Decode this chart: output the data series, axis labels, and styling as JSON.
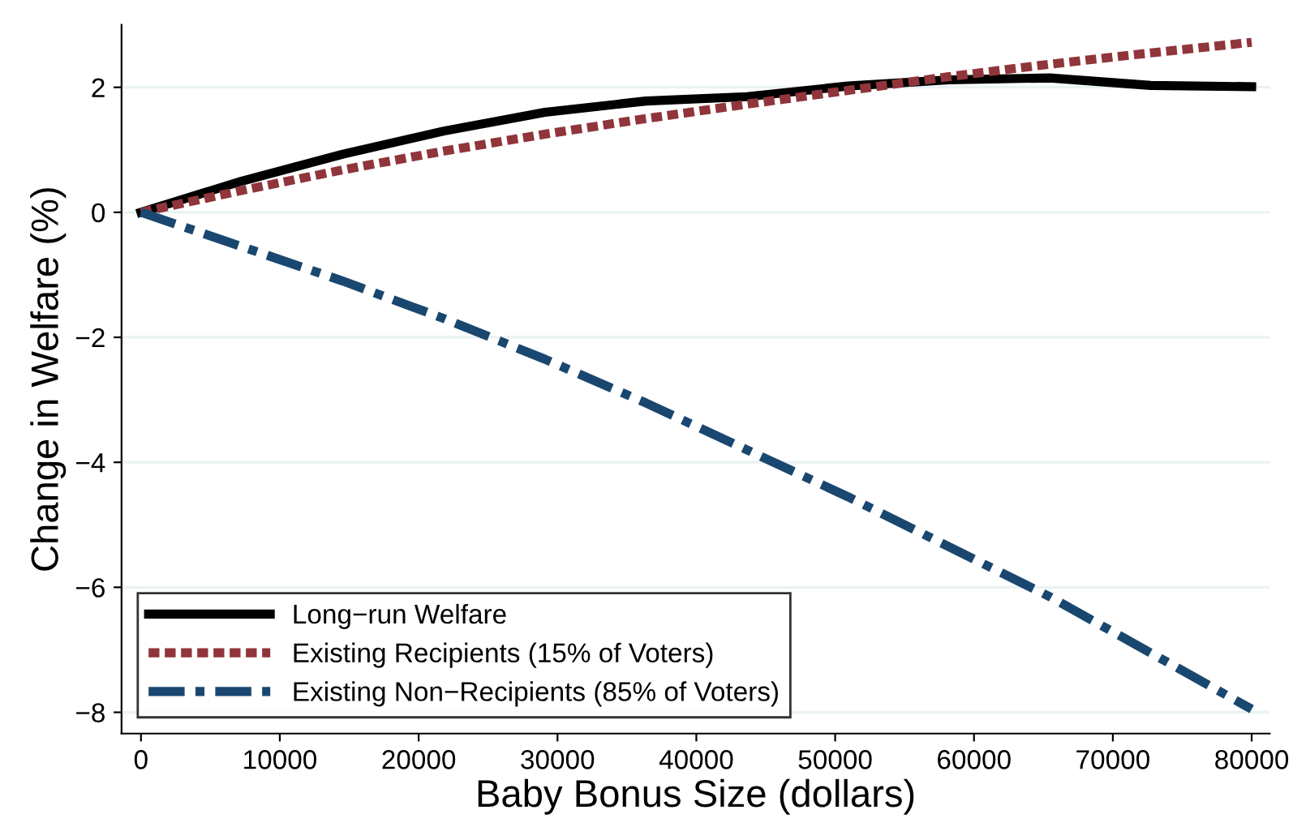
{
  "chart_data": {
    "type": "line",
    "xlabel": "Baby Bonus Size (dollars)",
    "ylabel": "Change in Welfare (%)",
    "x": [
      0,
      7273,
      14545,
      21818,
      29091,
      36364,
      43636,
      50909,
      58182,
      65455,
      72727,
      80000
    ],
    "series": [
      {
        "name": "Long−run Welfare",
        "color": "#000000",
        "line_style": "solid",
        "values": [
          0,
          0.5,
          0.93,
          1.3,
          1.6,
          1.78,
          1.85,
          2.02,
          2.12,
          2.15,
          2.03,
          2.01
        ]
      },
      {
        "name": "Existing Recipients (15% of Voters)",
        "color": "#90353b",
        "line_style": "dotted",
        "values": [
          0,
          0.35,
          0.68,
          0.98,
          1.25,
          1.5,
          1.73,
          1.95,
          2.17,
          2.37,
          2.55,
          2.72
        ]
      },
      {
        "name": "Existing Non−Recipients (85% of Voters)",
        "color": "#1a476f",
        "line_style": "dashdot",
        "values": [
          0,
          -0.55,
          -1.1,
          -1.7,
          -2.35,
          -3.05,
          -3.8,
          -4.55,
          -5.35,
          -6.15,
          -7.05,
          -7.95
        ]
      }
    ],
    "xlim": [
      -1400,
      81300
    ],
    "ylim": [
      -8.34,
      3.0
    ],
    "xticks": [
      0,
      10000,
      20000,
      30000,
      40000,
      50000,
      60000,
      70000,
      80000
    ],
    "yticks": [
      {
        "value": -8,
        "label": "−8"
      },
      {
        "value": -6,
        "label": "−6"
      },
      {
        "value": -4,
        "label": "−4"
      },
      {
        "value": -2,
        "label": "−2"
      },
      0,
      2
    ],
    "grid": "y",
    "legend": "bottom left"
  }
}
